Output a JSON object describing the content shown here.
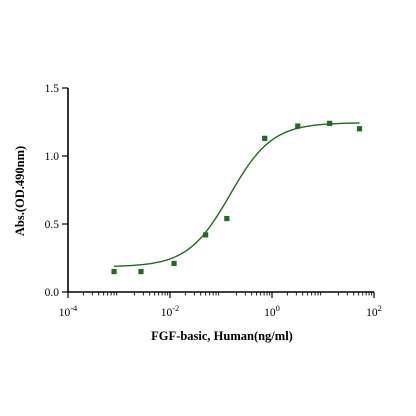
{
  "chart_data": {
    "type": "scatter",
    "title": "",
    "xlabel": "FGF-basic, Human(ng/ml)",
    "ylabel": "Abs.(OD.490nm)",
    "x_scale": "log",
    "xlim": [
      0.0001,
      100
    ],
    "ylim": [
      0,
      1.5
    ],
    "x_ticks": [
      {
        "value": 0.0001,
        "base": "10",
        "exp": "-4"
      },
      {
        "value": 0.01,
        "base": "10",
        "exp": "-2"
      },
      {
        "value": 1,
        "base": "10",
        "exp": "0"
      },
      {
        "value": 100,
        "base": "10",
        "exp": "2"
      }
    ],
    "y_ticks": [
      {
        "value": 0.0,
        "label": "0.0"
      },
      {
        "value": 0.5,
        "label": "0.5"
      },
      {
        "value": 1.0,
        "label": "1.0"
      },
      {
        "value": 1.5,
        "label": "1.5"
      }
    ],
    "grid": false,
    "legend": "none",
    "series": [
      {
        "color": "#1f6b1f",
        "marker": "square",
        "x": [
          0.0008,
          0.0027,
          0.012,
          0.05,
          0.13,
          0.72,
          3.2,
          13.5,
          52
        ],
        "y": [
          0.15,
          0.15,
          0.21,
          0.42,
          0.54,
          1.13,
          1.22,
          1.24,
          1.2
        ]
      }
    ],
    "fit_curve": {
      "model": "4PL",
      "color": "#1f6b1f",
      "bottom": 0.185,
      "top": 1.245,
      "ec50": 0.15,
      "hill": 1.05
    }
  }
}
